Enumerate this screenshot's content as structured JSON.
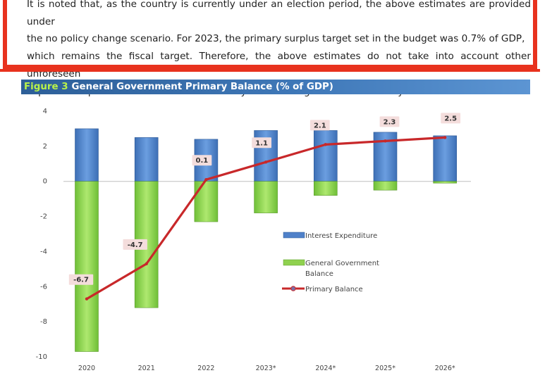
{
  "note": {
    "lines": [
      "It is noted that, as the country is currently under an election period, the above estimates are provided under",
      "the no policy change scenario. For 2023, the primary surplus target set in the budget was 0.7% of GDP,",
      "which remains the fiscal target. Therefore, the above estimates do not take into account other unforeseen",
      "expenses or post-election measures that may occur during the course of the year."
    ]
  },
  "figure": {
    "number": "Figure 3",
    "title": "General Government Primary Balance (% of GDP)"
  },
  "colors": {
    "interest": "#4f81c9",
    "balance": "#8fd14f",
    "primary_line": "#c8282a",
    "accent_red": "#e8321e",
    "header_blue": "#3a6fb0"
  },
  "chart_data": {
    "type": "bar",
    "title": "General Government Primary Balance (% of GDP)",
    "categories": [
      "2020",
      "2021",
      "2022",
      "2023*",
      "2024*",
      "2025*",
      "2026*"
    ],
    "ylim": [
      -10,
      4
    ],
    "yticks": [
      4,
      2,
      0,
      -2,
      -4,
      -6,
      -8,
      -10
    ],
    "grid": false,
    "legend_position": "right",
    "series": [
      {
        "name": "Interest Expenditure",
        "kind": "bar",
        "values": [
          3.0,
          2.5,
          2.4,
          2.9,
          2.9,
          2.8,
          2.6
        ]
      },
      {
        "name": "General Government Balance",
        "kind": "bar",
        "values": [
          -9.7,
          -7.2,
          -2.3,
          -1.8,
          -0.8,
          -0.5,
          -0.1
        ]
      },
      {
        "name": "Primary Balance",
        "kind": "line",
        "values": [
          -6.7,
          -4.7,
          0.1,
          1.1,
          2.1,
          2.3,
          2.5
        ]
      }
    ],
    "data_labels": [
      "-6.7",
      "-4.7",
      "0.1",
      "1.1",
      "2.1",
      "2.3",
      "2.5"
    ],
    "legend": {
      "interest": "Interest Expenditure",
      "balance_line1": "General Government",
      "balance_line2": "Balance",
      "primary": "Primary Balance"
    }
  }
}
